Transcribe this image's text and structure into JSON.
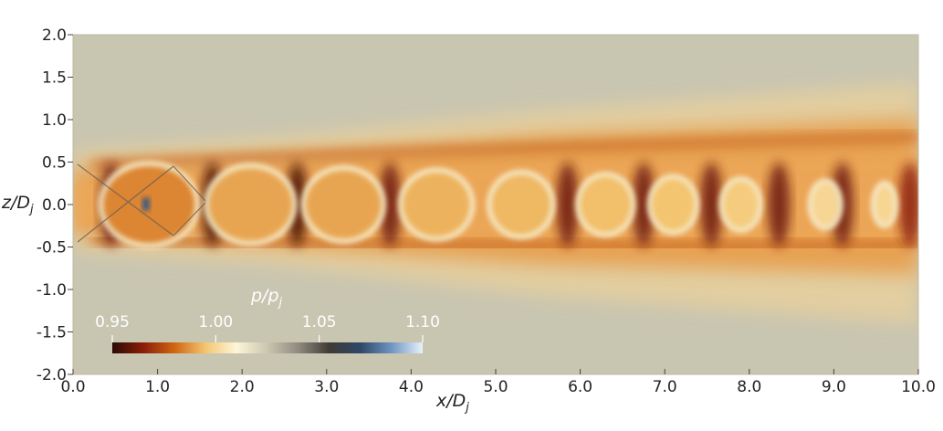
{
  "chart_data": {
    "type": "heatmap",
    "title": "",
    "xlabel": "x/D",
    "xlabel_sub": "j",
    "ylabel": "z/D",
    "ylabel_sub": "j",
    "xlim": [
      0.0,
      10.0
    ],
    "ylim": [
      -2.0,
      2.0
    ],
    "x_ticks": [
      "0.0",
      "1.0",
      "2.0",
      "3.0",
      "4.0",
      "5.0",
      "6.0",
      "7.0",
      "8.0",
      "9.0",
      "10.0"
    ],
    "y_ticks": [
      "2.0",
      "1.5",
      "1.0",
      "0.5",
      "0.0",
      "-0.5",
      "-1.0",
      "-1.5",
      "-2.0"
    ],
    "colorbar": {
      "title": "p/p",
      "title_sub": "j",
      "range": [
        0.95,
        1.1
      ],
      "tick_labels": [
        "0.95",
        "1.00",
        "1.05",
        "1.10"
      ],
      "tick_values": [
        0.95,
        1.0,
        1.05,
        1.1
      ],
      "placement": "bottom-left",
      "colors": [
        "#2a0a04",
        "#8a1e08",
        "#d06512",
        "#f4c570",
        "#fdf6d8",
        "#cac6b0",
        "#8f8a7f",
        "#3f3a35",
        "#2f4868",
        "#6f95c2",
        "#e8f2fb"
      ]
    },
    "background_color": "#c8c5b1",
    "shock_cells": [
      {
        "x": 0.9,
        "value": 0.985
      },
      {
        "x": 2.1,
        "value": 0.99
      },
      {
        "x": 3.2,
        "value": 0.99
      },
      {
        "x": 4.3,
        "value": 0.992
      },
      {
        "x": 5.3,
        "value": 0.993
      },
      {
        "x": 6.3,
        "value": 0.994
      },
      {
        "x": 7.1,
        "value": 0.995
      },
      {
        "x": 7.9,
        "value": 0.997
      },
      {
        "x": 8.9,
        "value": 1.0
      },
      {
        "x": 9.6,
        "value": 1.0
      }
    ],
    "compression_bands": [
      {
        "x": 0.45,
        "value": 0.96
      },
      {
        "x": 1.65,
        "value": 0.955
      },
      {
        "x": 2.65,
        "value": 0.955
      },
      {
        "x": 3.75,
        "value": 0.96
      },
      {
        "x": 5.85,
        "value": 0.96
      },
      {
        "x": 6.75,
        "value": 0.96
      },
      {
        "x": 7.55,
        "value": 0.96
      },
      {
        "x": 8.35,
        "value": 0.96
      },
      {
        "x": 9.1,
        "value": 0.96
      },
      {
        "x": 9.9,
        "value": 0.965
      }
    ]
  }
}
